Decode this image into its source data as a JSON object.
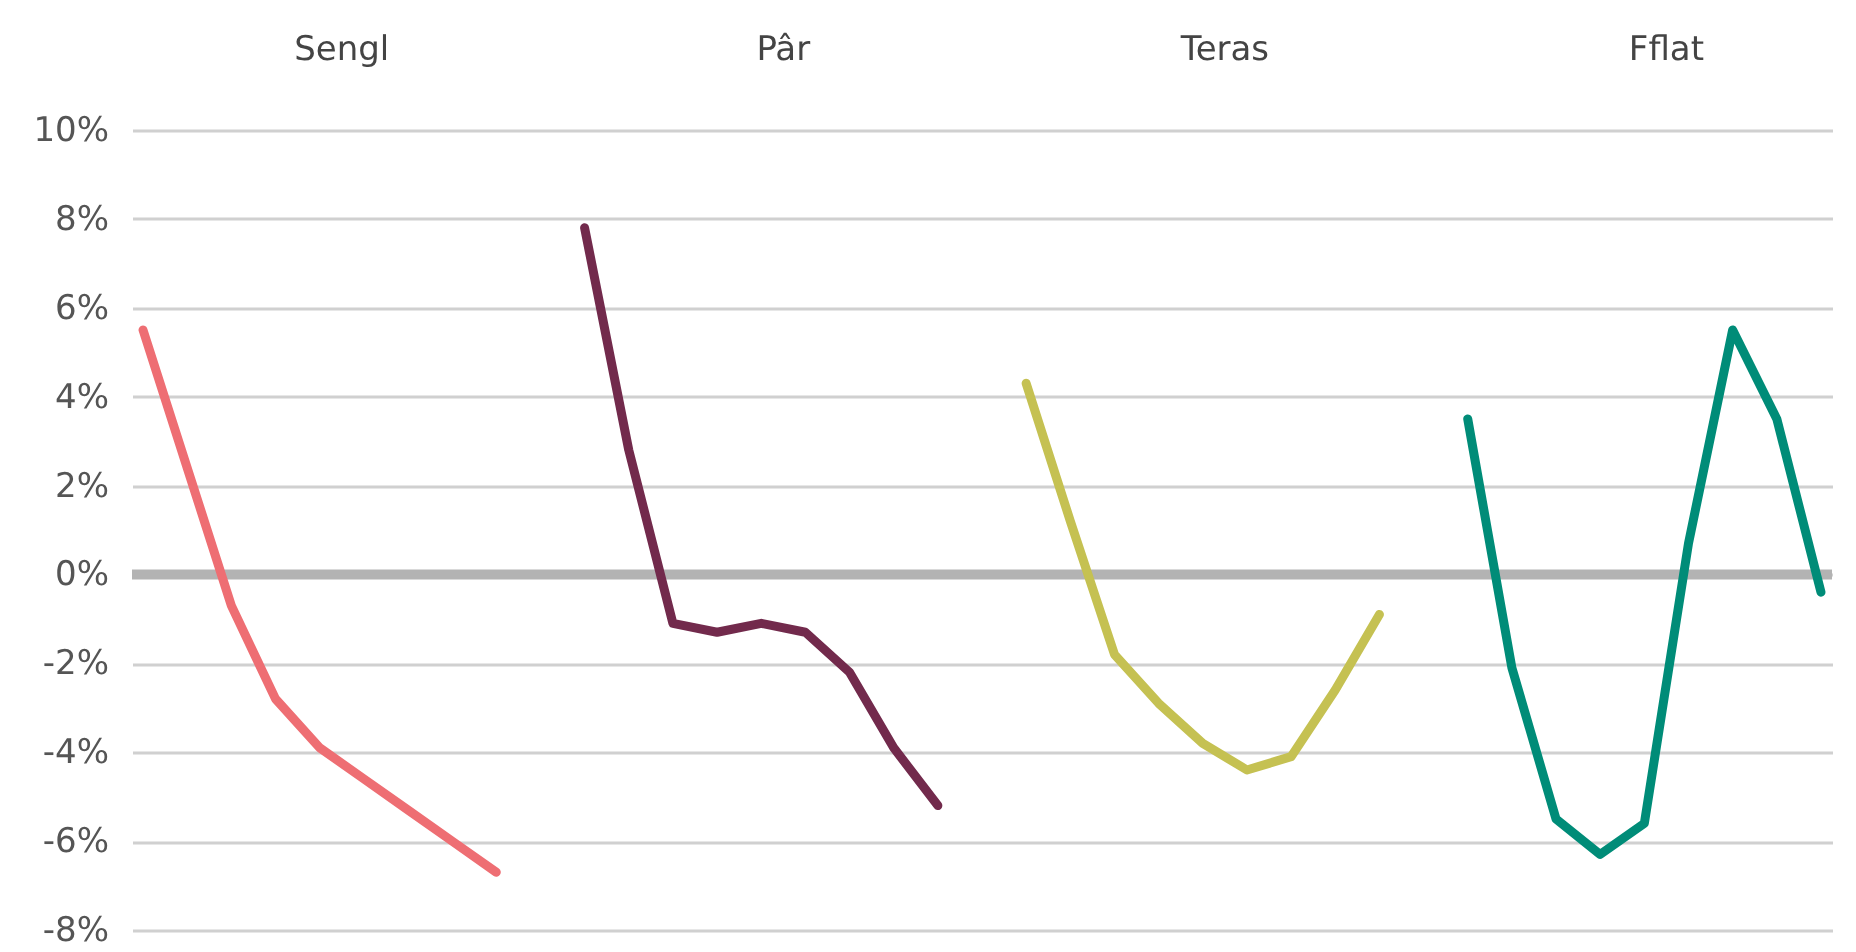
{
  "chart_data": {
    "type": "line",
    "categories": [
      null,
      null,
      null,
      null,
      null,
      null,
      null,
      null,
      null,
      null,
      null,
      null,
      null,
      null,
      null,
      null,
      null,
      null,
      null,
      null,
      null,
      null,
      null,
      null,
      null,
      null,
      null,
      null,
      null,
      null,
      null,
      null,
      null,
      null,
      null,
      null,
      null,
      null,
      null
    ],
    "series": [
      {
        "color": "#ee6e73",
        "values": [
          5.5,
          2.4,
          -0.7,
          -2.8,
          -3.9,
          -4.6,
          -5.3,
          -6.0,
          -6.7,
          null,
          null,
          null,
          null,
          null,
          null,
          null,
          null,
          null,
          null,
          null,
          null,
          null,
          null,
          null,
          null,
          null,
          null,
          null,
          null,
          null,
          null,
          null,
          null,
          null,
          null,
          null,
          null,
          null,
          null
        ]
      },
      {
        "color": "#722a4c",
        "values": [
          null,
          null,
          null,
          null,
          null,
          null,
          null,
          null,
          null,
          null,
          7.8,
          2.8,
          -1.1,
          -1.3,
          -1.1,
          -1.3,
          -2.2,
          -3.9,
          -5.2,
          null,
          null,
          null,
          null,
          null,
          null,
          null,
          null,
          null,
          null,
          null,
          null,
          null,
          null,
          null,
          null,
          null,
          null,
          null,
          null
        ]
      },
      {
        "color": "#c5c152",
        "values": [
          null,
          null,
          null,
          null,
          null,
          null,
          null,
          null,
          null,
          null,
          null,
          null,
          null,
          null,
          null,
          null,
          null,
          null,
          null,
          null,
          4.3,
          1.2,
          -1.8,
          -2.9,
          -3.8,
          -4.4,
          -4.1,
          -2.6,
          -0.9,
          null,
          null,
          null,
          null,
          null,
          null,
          null,
          null,
          null,
          null
        ]
      },
      {
        "color": "#008c78",
        "values": [
          null,
          null,
          null,
          null,
          null,
          null,
          null,
          null,
          null,
          null,
          null,
          null,
          null,
          null,
          null,
          null,
          null,
          null,
          null,
          null,
          null,
          null,
          null,
          null,
          null,
          null,
          null,
          null,
          null,
          null,
          3.5,
          -2.1,
          -5.5,
          -6.3,
          -5.6,
          0.7,
          5.5,
          3.5,
          -0.4
        ]
      }
    ],
    "ylim": [
      -8,
      10
    ],
    "yticks": [
      {
        "value": -8,
        "label": "-8%"
      },
      {
        "value": -6,
        "label": "-6%"
      },
      {
        "value": -4,
        "label": "-4%"
      },
      {
        "value": -2,
        "label": "-2%"
      },
      {
        "value": 0,
        "label": "0%"
      },
      {
        "value": 2,
        "label": "2%"
      },
      {
        "value": 4,
        "label": "4%"
      },
      {
        "value": 6,
        "label": "6%"
      },
      {
        "value": 8,
        "label": "8%"
      },
      {
        "value": 10,
        "label": "10%"
      }
    ],
    "annotations": [
      "Sengl",
      "Pâr",
      "Teras",
      "Fflat"
    ],
    "grid": "y",
    "ref_lines": [
      {
        "axis": "y",
        "value": 0,
        "color": "#b3b3b3"
      }
    ]
  }
}
